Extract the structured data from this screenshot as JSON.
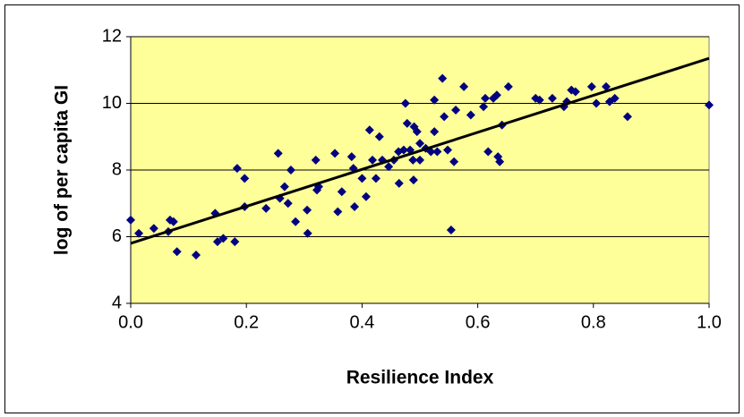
{
  "chart_data": {
    "type": "scatter",
    "x_label": "Resilience Index",
    "y_label": "log of per capita GI",
    "xlim": [
      0,
      1
    ],
    "ylim": [
      4,
      12
    ],
    "xticks": [
      {
        "value": 0,
        "label": "0.0"
      },
      0.2,
      0.4,
      0.6,
      0.8,
      {
        "value": 1,
        "label": "1.0"
      }
    ],
    "yticks": [
      4,
      6,
      8,
      10,
      12
    ],
    "grid": true,
    "plot_background": "#ffff99",
    "x": [
      0.0,
      0.014,
      0.04,
      0.065,
      0.068,
      0.074,
      0.08,
      0.113,
      0.146,
      0.15,
      0.16,
      0.18,
      0.184,
      0.197,
      0.197,
      0.234,
      0.255,
      0.258,
      0.266,
      0.272,
      0.277,
      0.285,
      0.305,
      0.306,
      0.32,
      0.322,
      0.325,
      0.353,
      0.358,
      0.365,
      0.382,
      0.385,
      0.387,
      0.4,
      0.407,
      0.413,
      0.418,
      0.424,
      0.43,
      0.435,
      0.446,
      0.455,
      0.463,
      0.464,
      0.472,
      0.475,
      0.478,
      0.483,
      0.488,
      0.489,
      0.49,
      0.495,
      0.5,
      0.5,
      0.51,
      0.519,
      0.525,
      0.525,
      0.53,
      0.539,
      0.542,
      0.548,
      0.554,
      0.559,
      0.562,
      0.576,
      0.588,
      0.61,
      0.613,
      0.618,
      0.627,
      0.633,
      0.635,
      0.638,
      0.642,
      0.653,
      0.7,
      0.707,
      0.729,
      0.749,
      0.754,
      0.762,
      0.769,
      0.797,
      0.805,
      0.822,
      0.828,
      0.837,
      0.859,
      1.0
    ],
    "series": [
      {
        "color": "#000080",
        "values": [
          6.5,
          6.1,
          6.25,
          6.15,
          6.5,
          6.45,
          5.55,
          5.45,
          6.7,
          5.85,
          5.95,
          5.85,
          8.05,
          7.75,
          6.9,
          6.85,
          8.5,
          7.15,
          7.5,
          7.0,
          8.0,
          6.45,
          6.8,
          6.1,
          8.3,
          7.4,
          7.5,
          8.5,
          6.75,
          7.35,
          8.4,
          8.05,
          6.9,
          7.75,
          7.2,
          9.2,
          8.3,
          7.75,
          9.0,
          8.3,
          8.1,
          8.3,
          8.55,
          7.6,
          8.6,
          10.0,
          9.4,
          8.6,
          8.3,
          7.7,
          9.3,
          9.15,
          8.3,
          8.8,
          8.65,
          8.55,
          9.15,
          10.1,
          8.55,
          10.75,
          9.6,
          8.6,
          6.2,
          8.25,
          9.8,
          10.5,
          9.65,
          9.9,
          10.15,
          8.55,
          10.15,
          10.25,
          8.4,
          8.25,
          9.35,
          10.5,
          10.15,
          10.1,
          10.15,
          9.9,
          10.05,
          10.4,
          10.35,
          10.5,
          10.0,
          10.5,
          10.05,
          10.15,
          9.6,
          9.95
        ]
      }
    ],
    "trendline": {
      "color": "#000000",
      "x": [
        0,
        1
      ],
      "values": [
        5.8,
        11.35
      ]
    }
  }
}
